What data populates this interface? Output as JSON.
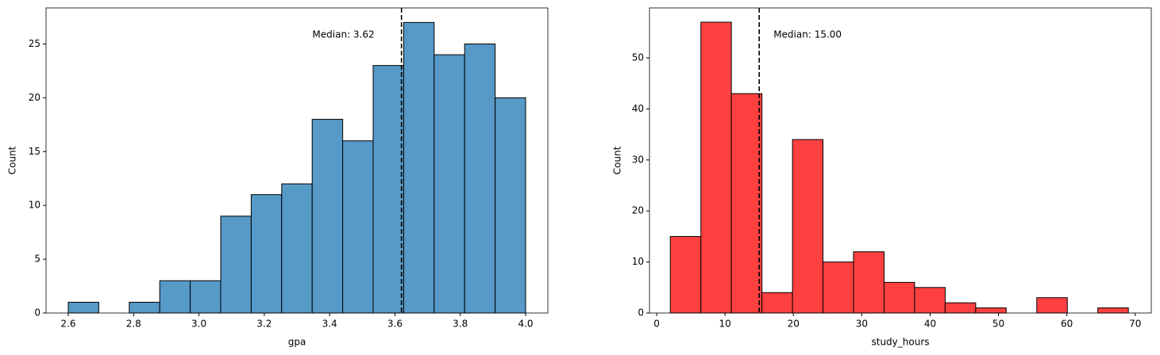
{
  "chart_data": [
    {
      "type": "histogram",
      "x_label": "gpa",
      "y_label": "Count",
      "color": "#5799c7",
      "bins": [
        2.6,
        2.6933,
        2.7867,
        2.88,
        2.9733,
        3.0667,
        3.16,
        3.2533,
        3.3467,
        3.44,
        3.5333,
        3.6267,
        3.72,
        3.8133,
        3.9067,
        4.0
      ],
      "values": [
        1,
        0,
        1,
        3,
        3,
        9,
        11,
        12,
        18,
        16,
        23,
        27,
        24,
        25,
        20
      ],
      "median": 3.62,
      "annotation": "Median: 3.62",
      "xlim": [
        2.532,
        4.068
      ],
      "ylim": [
        0,
        28.35
      ],
      "xticks": [
        2.6,
        2.8,
        {
          "value": 3.0,
          "label": "3.0"
        },
        3.2,
        3.4,
        3.6,
        3.8,
        {
          "value": 4.0,
          "label": "4.0"
        }
      ],
      "yticks": [
        0,
        5,
        10,
        15,
        20,
        25
      ]
    },
    {
      "type": "histogram",
      "x_label": "study_hours",
      "y_label": "Count",
      "color": "#ff4040",
      "bins": [
        2,
        6.47,
        10.93,
        15.4,
        19.87,
        24.33,
        28.8,
        33.27,
        37.73,
        42.2,
        46.67,
        51.13,
        55.6,
        60.07,
        64.53,
        69
      ],
      "values": [
        15,
        57,
        43,
        4,
        34,
        10,
        12,
        6,
        5,
        2,
        1,
        0,
        3,
        0,
        1
      ],
      "median": 15,
      "annotation": "Median: 15.00",
      "xlim": [
        -1.05,
        72.35
      ],
      "ylim": [
        0,
        59.8
      ],
      "xticks": [
        0,
        10,
        20,
        30,
        40,
        50,
        60,
        70
      ],
      "yticks": [
        0,
        10,
        20,
        30,
        40,
        50
      ]
    }
  ]
}
